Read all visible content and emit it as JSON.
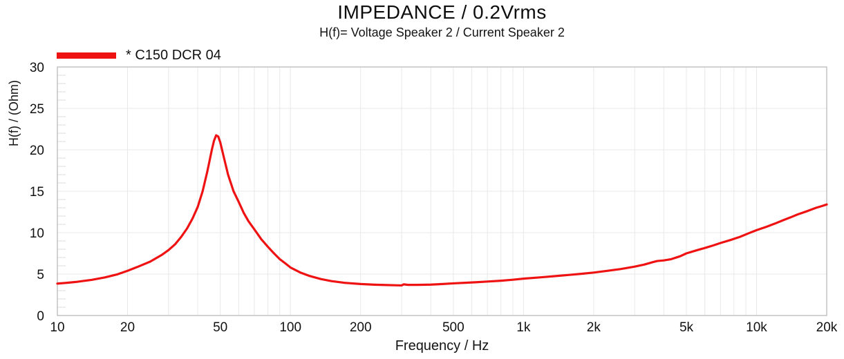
{
  "header": {
    "title": "IMPEDANCE / 0.2Vrms",
    "subtitle": "H(f)= Voltage Speaker 2 / Current Speaker 2"
  },
  "legend": {
    "label": "* C150 DCR 04",
    "color": "#ee1212",
    "position": "top-left"
  },
  "colors": {
    "background": "#ffffff",
    "text": "#111111",
    "plot_border": "#b3b3b3",
    "gridline": "#e8e8e8",
    "minor_tick": "#dedede",
    "curve": "#ee1212"
  },
  "chart_data": {
    "type": "line",
    "title": "IMPEDANCE / 0.2Vrms",
    "subtitle": "H(f)= Voltage Speaker 2 / Current Speaker 2",
    "xlabel": "Frequency / Hz",
    "ylabel": "H(f) / (Ohm)",
    "x_scale": "log",
    "xlim": [
      10,
      20000
    ],
    "ylim": [
      0,
      30
    ],
    "grid": true,
    "x_minor_gridlines": true,
    "y_minor_step": 1,
    "legend_position": "top-left",
    "x_ticks": [
      {
        "value": 10,
        "label": "10"
      },
      {
        "value": 20,
        "label": "20"
      },
      {
        "value": 50,
        "label": "50"
      },
      {
        "value": 100,
        "label": "100"
      },
      {
        "value": 200,
        "label": "200"
      },
      {
        "value": 500,
        "label": "500"
      },
      {
        "value": 1000,
        "label": "1k"
      },
      {
        "value": 2000,
        "label": "2k"
      },
      {
        "value": 5000,
        "label": "5k"
      },
      {
        "value": 10000,
        "label": "10k"
      },
      {
        "value": 20000,
        "label": "20k"
      }
    ],
    "y_ticks": [
      {
        "value": 0,
        "label": "0"
      },
      {
        "value": 5,
        "label": "5"
      },
      {
        "value": 10,
        "label": "10"
      },
      {
        "value": 15,
        "label": "15"
      },
      {
        "value": 20,
        "label": "20"
      },
      {
        "value": 25,
        "label": "25"
      },
      {
        "value": 30,
        "label": "30"
      }
    ],
    "annotations": {
      "resonance_peak": {
        "frequency_hz": 48,
        "impedance_ohm": 21.75
      },
      "minimum": {
        "frequency_hz": 280,
        "impedance_ohm": 3.64
      }
    },
    "series": [
      {
        "name": "* C150 DCR 04",
        "color": "#ee1212",
        "points": [
          [
            10,
            3.85
          ],
          [
            11,
            3.95
          ],
          [
            12,
            4.05
          ],
          [
            13,
            4.18
          ],
          [
            14,
            4.3
          ],
          [
            15,
            4.45
          ],
          [
            16,
            4.6
          ],
          [
            18,
            4.95
          ],
          [
            20,
            5.4
          ],
          [
            22,
            5.85
          ],
          [
            25,
            6.5
          ],
          [
            28,
            7.3
          ],
          [
            30,
            7.9
          ],
          [
            32,
            8.6
          ],
          [
            34,
            9.5
          ],
          [
            36,
            10.5
          ],
          [
            38,
            11.7
          ],
          [
            40,
            13.1
          ],
          [
            42,
            15.0
          ],
          [
            44,
            17.4
          ],
          [
            45,
            18.7
          ],
          [
            46,
            20.0
          ],
          [
            47,
            21.1
          ],
          [
            48,
            21.75
          ],
          [
            49,
            21.6
          ],
          [
            50,
            20.9
          ],
          [
            52,
            18.9
          ],
          [
            54,
            17.0
          ],
          [
            57,
            15.0
          ],
          [
            60,
            13.7
          ],
          [
            63,
            12.4
          ],
          [
            66,
            11.4
          ],
          [
            70,
            10.4
          ],
          [
            75,
            9.2
          ],
          [
            80,
            8.3
          ],
          [
            85,
            7.5
          ],
          [
            90,
            6.8
          ],
          [
            95,
            6.3
          ],
          [
            100,
            5.8
          ],
          [
            110,
            5.2
          ],
          [
            120,
            4.8
          ],
          [
            135,
            4.4
          ],
          [
            150,
            4.15
          ],
          [
            170,
            3.95
          ],
          [
            200,
            3.8
          ],
          [
            230,
            3.72
          ],
          [
            260,
            3.68
          ],
          [
            290,
            3.64
          ],
          [
            300,
            3.63
          ],
          [
            306,
            3.76
          ],
          [
            320,
            3.7
          ],
          [
            350,
            3.7
          ],
          [
            400,
            3.73
          ],
          [
            450,
            3.8
          ],
          [
            500,
            3.88
          ],
          [
            560,
            3.95
          ],
          [
            630,
            4.02
          ],
          [
            700,
            4.1
          ],
          [
            800,
            4.2
          ],
          [
            900,
            4.32
          ],
          [
            1000,
            4.45
          ],
          [
            1200,
            4.62
          ],
          [
            1400,
            4.78
          ],
          [
            1600,
            4.92
          ],
          [
            1800,
            5.05
          ],
          [
            2000,
            5.18
          ],
          [
            2300,
            5.4
          ],
          [
            2600,
            5.6
          ],
          [
            3000,
            5.9
          ],
          [
            3300,
            6.15
          ],
          [
            3600,
            6.45
          ],
          [
            3750,
            6.58
          ],
          [
            4000,
            6.65
          ],
          [
            4300,
            6.8
          ],
          [
            4700,
            7.15
          ],
          [
            5000,
            7.5
          ],
          [
            5500,
            7.85
          ],
          [
            6000,
            8.15
          ],
          [
            6500,
            8.45
          ],
          [
            7000,
            8.75
          ],
          [
            7700,
            9.1
          ],
          [
            8500,
            9.5
          ],
          [
            9200,
            9.9
          ],
          [
            10000,
            10.3
          ],
          [
            11000,
            10.7
          ],
          [
            12000,
            11.1
          ],
          [
            13000,
            11.5
          ],
          [
            14000,
            11.85
          ],
          [
            15000,
            12.2
          ],
          [
            16500,
            12.6
          ],
          [
            18000,
            13.0
          ],
          [
            19000,
            13.2
          ],
          [
            20000,
            13.4
          ]
        ]
      }
    ]
  }
}
